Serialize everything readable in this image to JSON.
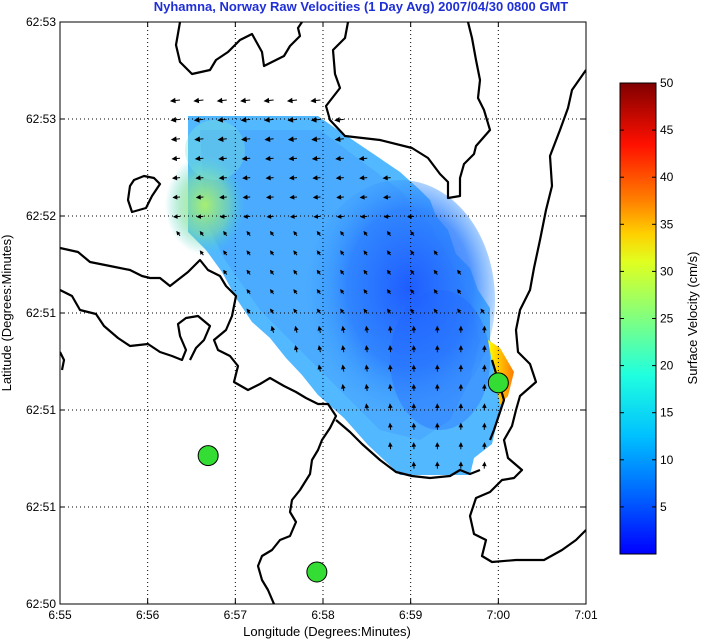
{
  "chart_data": {
    "type": "heatmap",
    "title": "Nyhamna, Norway Raw Velocities (1 Day Avg) 2007/04/30 0800 GMT",
    "xlabel": "Longitude (Degrees:Minutes)",
    "ylabel": "Latitude (Degrees:Minutes)",
    "x_tick_labels": [
      "6:55",
      "6:56",
      "6:57",
      "6:58",
      "6:59",
      "7:00",
      "7:01"
    ],
    "y_tick_labels": [
      "62:53",
      "62:53",
      "62:52",
      "62:51",
      "62:51",
      "62:51",
      "62:50"
    ],
    "x_range_minutes": [
      55,
      61
    ],
    "grid": true,
    "colorbar": {
      "label": "Surface Velocity (cm/s)",
      "ticks": [
        5,
        10,
        15,
        20,
        25,
        30,
        35,
        40,
        45,
        50
      ],
      "range": [
        0,
        50
      ],
      "colormap": [
        "#0000ff",
        "#0080ff",
        "#00ffff",
        "#80ff80",
        "#ffff00",
        "#ff8000",
        "#ff0000",
        "#800000"
      ]
    },
    "stations": [
      {
        "lon_min": 56.69,
        "row": 0.745
      },
      {
        "lon_min": 57.93,
        "row": 0.945
      },
      {
        "lon_min": 60.0,
        "row": 0.62
      }
    ]
  }
}
